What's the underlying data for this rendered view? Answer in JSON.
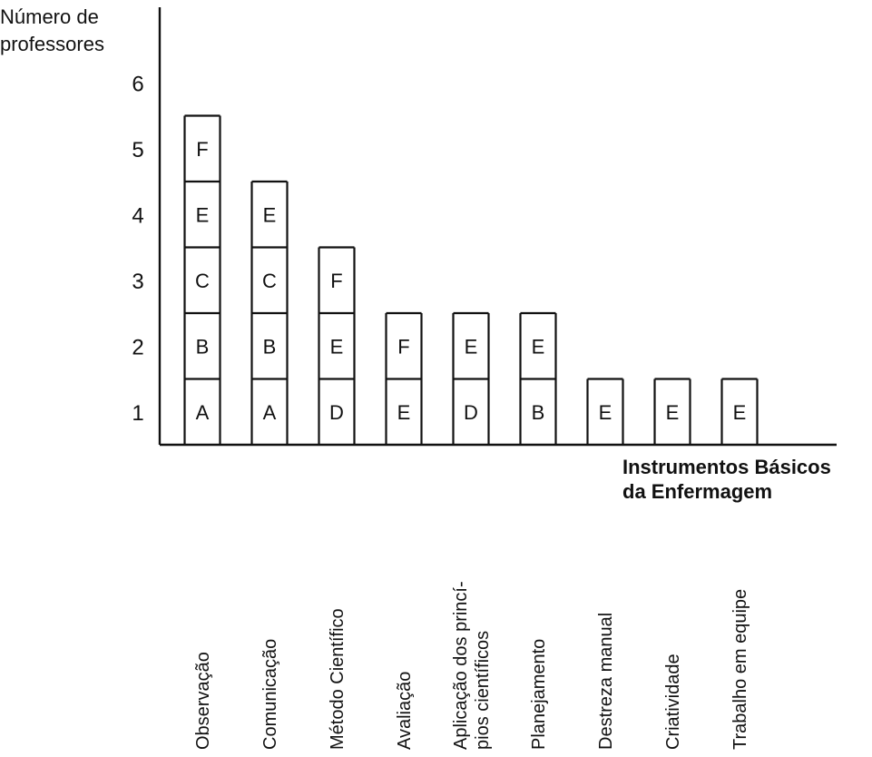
{
  "chart_data": {
    "type": "bar",
    "stacked": true,
    "ylabel_lines": [
      "Número de",
      "professores"
    ],
    "xlabel_lines": [
      "Instrumentos Básicos",
      "da Enfermagem"
    ],
    "y_ticks": [
      1,
      2,
      3,
      4,
      5,
      6
    ],
    "ylim": [
      0,
      6
    ],
    "categories": [
      {
        "label_lines": [
          "Observação"
        ],
        "segments": [
          "A",
          "B",
          "C",
          "E",
          "F"
        ]
      },
      {
        "label_lines": [
          "Comunicação"
        ],
        "segments": [
          "A",
          "B",
          "C",
          "E"
        ]
      },
      {
        "label_lines": [
          "Método Científico"
        ],
        "segments": [
          "D",
          "E",
          "F"
        ]
      },
      {
        "label_lines": [
          "Avaliação"
        ],
        "segments": [
          "E",
          "F"
        ]
      },
      {
        "label_lines": [
          "Aplicação dos princí-",
          "pios científicos"
        ],
        "segments": [
          "D",
          "E"
        ]
      },
      {
        "label_lines": [
          "Planejamento"
        ],
        "segments": [
          "B",
          "E"
        ]
      },
      {
        "label_lines": [
          "Destreza manual"
        ],
        "segments": [
          "E"
        ]
      },
      {
        "label_lines": [
          "Criatividade"
        ],
        "segments": [
          "E"
        ]
      },
      {
        "label_lines": [
          "Trabalho em equipe"
        ],
        "segments": [
          "E"
        ]
      }
    ]
  }
}
